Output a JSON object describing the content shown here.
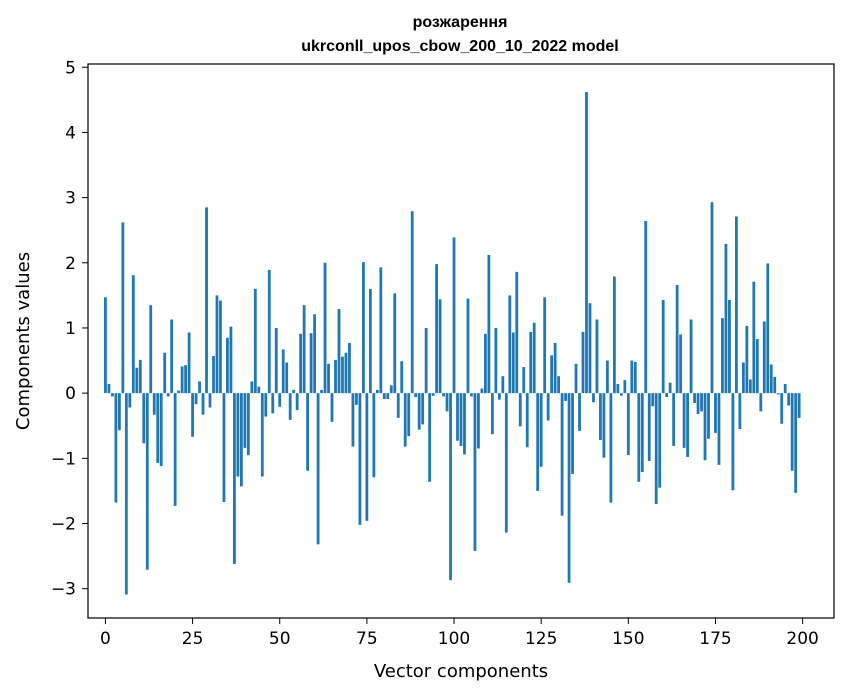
{
  "chart_data": {
    "type": "bar",
    "title": "розжарення",
    "subtitle": "ukrconll_upos_cbow_200_10_2022 model",
    "xlabel": "Vector components",
    "ylabel": "Components values",
    "xlim": [
      -5,
      209
    ],
    "ylim": [
      -3.45,
      5.05
    ],
    "x_ticks": [
      0,
      25,
      50,
      75,
      100,
      125,
      150,
      175,
      200
    ],
    "x_tick_labels": [
      "0",
      "25",
      "50",
      "75",
      "100",
      "125",
      "150",
      "175",
      "200"
    ],
    "y_ticks": [
      -3,
      -2,
      -1,
      0,
      1,
      2,
      3,
      4,
      5
    ],
    "y_tick_labels": [
      "−3",
      "−2",
      "−1",
      "0",
      "1",
      "2",
      "3",
      "4",
      "5"
    ],
    "grid": false,
    "bar_color": "#1f77b4",
    "series": [
      {
        "values": [
          1.47,
          0.14,
          -0.05,
          -1.68,
          -0.57,
          2.62,
          -3.09,
          -0.22,
          1.81,
          0.39,
          0.51,
          -0.77,
          -2.71,
          1.35,
          -0.33,
          -1.07,
          -1.12,
          0.62,
          -0.05,
          1.13,
          -1.73,
          0.04,
          0.41,
          0.43,
          0.93,
          -0.67,
          -0.17,
          0.18,
          -0.33,
          2.85,
          -0.22,
          0.57,
          1.5,
          1.42,
          -1.67,
          0.85,
          1.02,
          -2.62,
          -1.28,
          -1.43,
          -0.84,
          -0.95,
          0.18,
          1.6,
          0.1,
          -1.28,
          -0.36,
          1.89,
          -0.31,
          1.0,
          -0.21,
          0.67,
          0.47,
          -0.41,
          0.05,
          -0.26,
          0.91,
          1.35,
          -1.19,
          0.92,
          1.21,
          -2.32,
          0.05,
          2.0,
          0.45,
          -0.44,
          0.51,
          1.29,
          0.56,
          0.62,
          0.77,
          -0.82,
          -0.18,
          -2.02,
          2.01,
          -1.96,
          1.6,
          -1.29,
          0.05,
          1.93,
          -0.09,
          -0.09,
          0.12,
          1.53,
          -0.38,
          0.49,
          -0.82,
          -0.66,
          2.79,
          -0.06,
          -0.56,
          -0.48,
          1.0,
          -1.36,
          -0.04,
          1.98,
          1.44,
          -0.05,
          -0.28,
          -2.87,
          2.39,
          -0.73,
          -0.81,
          -0.94,
          1.45,
          -0.05,
          -2.42,
          -0.85,
          0.07,
          0.91,
          2.12,
          -0.63,
          1.0,
          -0.1,
          0.26,
          -2.14,
          1.5,
          0.93,
          1.86,
          -0.51,
          0.4,
          -0.83,
          0.94,
          1.08,
          -1.5,
          -1.13,
          1.47,
          -0.42,
          0.58,
          0.77,
          0.26,
          -1.88,
          -0.12,
          -2.91,
          -1.24,
          0.45,
          -0.58,
          0.94,
          4.62,
          1.38,
          -0.14,
          1.13,
          -0.72,
          -0.99,
          0.5,
          -1.68,
          1.79,
          0.14,
          -0.04,
          0.2,
          -0.95,
          0.5,
          0.48,
          -1.36,
          -1.21,
          2.64,
          -1.04,
          -0.2,
          -1.7,
          -1.45,
          1.43,
          -0.06,
          0.16,
          -0.81,
          1.66,
          0.9,
          -0.84,
          -0.98,
          1.13,
          -0.15,
          -0.32,
          -0.28,
          -1.03,
          -0.7,
          2.93,
          -0.61,
          -1.1,
          1.15,
          2.29,
          1.43,
          -1.49,
          2.71,
          -0.55,
          0.47,
          1.03,
          0.21,
          1.71,
          0.83,
          -0.28,
          1.1,
          1.99,
          0.44,
          0.25,
          -0.02,
          -0.47,
          0.14,
          -0.19,
          -1.19,
          -1.53,
          -0.38
        ]
      }
    ]
  }
}
